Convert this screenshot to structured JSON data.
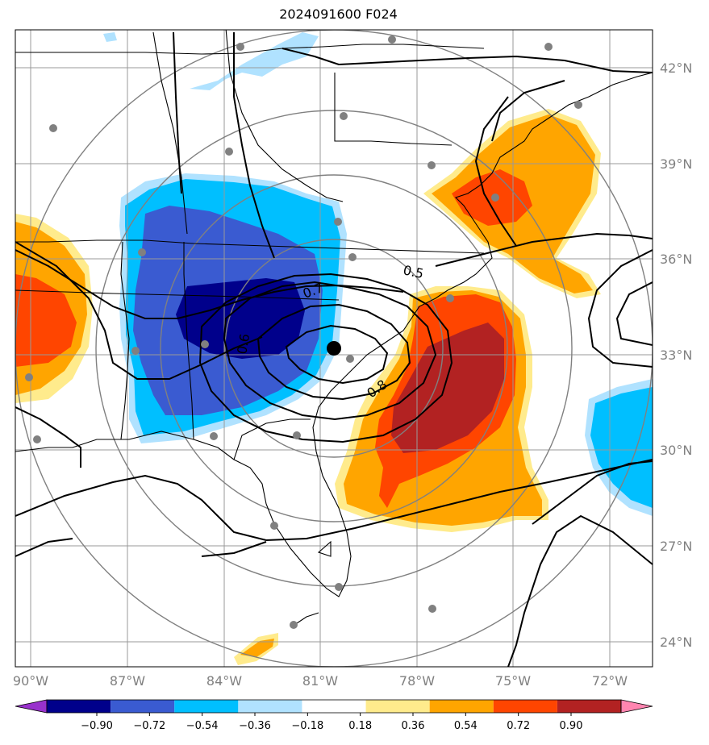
{
  "title": "2024091600 F024",
  "lon_labels": [
    "90°W",
    "87°W",
    "84°W",
    "81°W",
    "78°W",
    "75°W",
    "72°W"
  ],
  "lat_labels": [
    "42°N",
    "39°N",
    "36°N",
    "33°N",
    "30°N",
    "27°N",
    "24°N"
  ],
  "contour_labels": [
    "0.5",
    "0.7",
    "0.6",
    "0.8"
  ],
  "colorbar": {
    "ticks": [
      "−0.90",
      "−0.72",
      "−0.54",
      "−0.36",
      "−0.18",
      "0.18",
      "0.36",
      "0.54",
      "0.72",
      "0.90"
    ],
    "colors": [
      "#9932cc",
      "#00008b",
      "#3a5bd1",
      "#00bfff",
      "#b0e2ff",
      "#ffffff",
      "#ffeb8c",
      "#ffa500",
      "#ff4500",
      "#b22222",
      "#ff85b0"
    ]
  },
  "fill_colors": {
    "dark_blue": "#00008b",
    "medium_blue": "#3a5bd1",
    "blue": "#00bfff",
    "light_blue": "#b0e2ff",
    "light_yellow": "#ffeb8c",
    "orange": "#ffa500",
    "orange_red": "#ff4500",
    "firebrick": "#b22222"
  },
  "storm_center": {
    "lon": "80.5°W",
    "lat": "33.2°N"
  }
}
